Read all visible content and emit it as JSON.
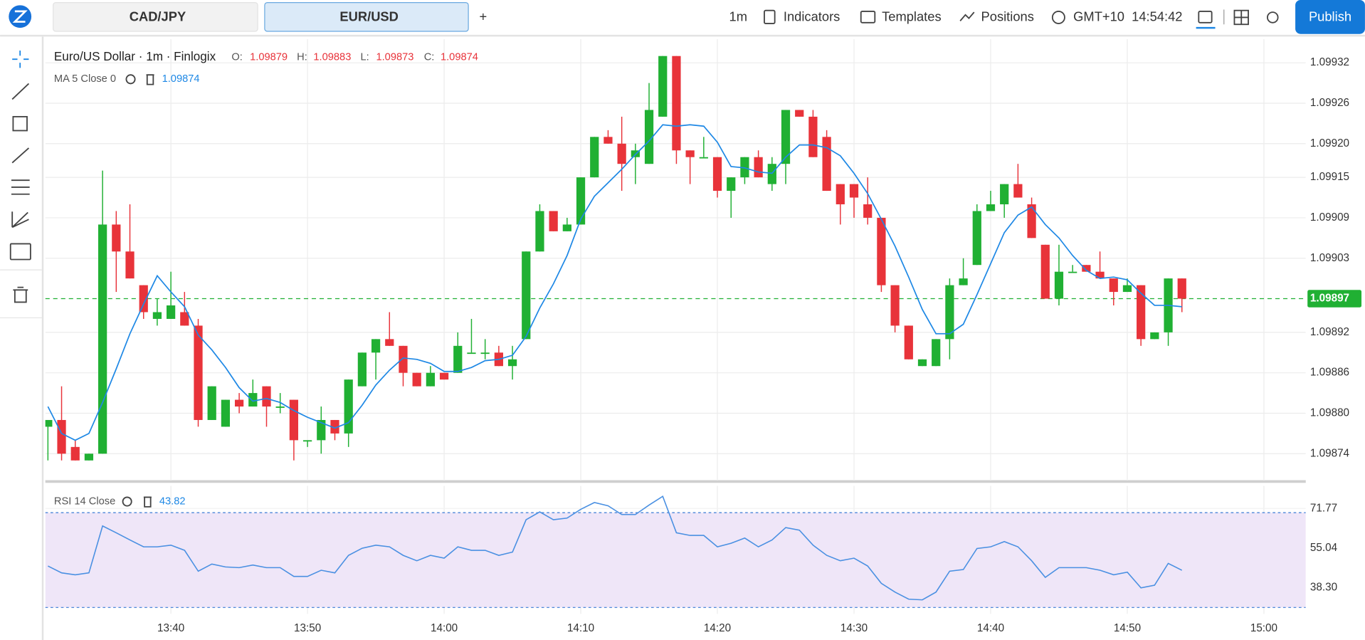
{
  "toolbar": {
    "tabs": [
      "CAD/JPY",
      "EUR/USD"
    ],
    "add": "+",
    "interval": "1m",
    "indicators": "Indicators",
    "templates": "Templates",
    "positions": "Positions",
    "timezone": "GMT+10",
    "clock": "14:54:42",
    "publish": "Publish"
  },
  "legend": {
    "symbol": "Euro/US Dollar · 1m · Finlogix",
    "o_label": "O:",
    "o": "1.09879",
    "h_label": "H:",
    "h": "1.09883",
    "l_label": "L:",
    "l": "1.09873",
    "c_label": "C:",
    "c": "1.09874",
    "ma_label": "MA 5 Close 0",
    "ma_value": "1.09874",
    "rsi_label": "RSI 14 Close",
    "rsi_value": "43.82"
  },
  "chart_data": [
    {
      "type": "candlestick",
      "x": [
        "13:31",
        "13:32",
        "13:33",
        "13:34",
        "13:35",
        "13:36",
        "13:37",
        "13:38",
        "13:39",
        "13:40",
        "13:41",
        "13:42",
        "13:43",
        "13:44",
        "13:45",
        "13:46",
        "13:47",
        "13:48",
        "13:49",
        "13:50",
        "13:51",
        "13:52",
        "13:53",
        "13:54",
        "13:55",
        "13:56",
        "13:57",
        "13:58",
        "13:59",
        "14:00",
        "14:01",
        "14:02",
        "14:03",
        "14:04",
        "14:05",
        "14:06",
        "14:07",
        "14:08",
        "14:09",
        "14:10",
        "14:11",
        "14:12",
        "14:13",
        "14:14",
        "14:15",
        "14:16",
        "14:17",
        "14:18",
        "14:19",
        "14:20",
        "14:21",
        "14:22",
        "14:23",
        "14:24",
        "14:25",
        "14:26",
        "14:27",
        "14:28",
        "14:29",
        "14:30",
        "14:31",
        "14:32",
        "14:33",
        "14:34",
        "14:35",
        "14:36",
        "14:37",
        "14:38",
        "14:39",
        "14:40",
        "14:41",
        "14:42",
        "14:43",
        "14:44",
        "14:45",
        "14:46",
        "14:47",
        "14:48",
        "14:49",
        "14:50",
        "14:51",
        "14:52",
        "14:53",
        "14:54"
      ],
      "open": [
        1.09878,
        1.09879,
        1.09875,
        1.09873,
        1.09874,
        1.09908,
        1.09904,
        1.09899,
        1.09894,
        1.09894,
        1.09895,
        1.09893,
        1.09879,
        1.09878,
        1.09882,
        1.09881,
        1.09884,
        1.09881,
        1.09882,
        1.09876,
        1.09876,
        1.09879,
        1.09877,
        1.09884,
        1.09889,
        1.09891,
        1.0989,
        1.09886,
        1.09884,
        1.09886,
        1.09886,
        1.09889,
        1.09889,
        1.09889,
        1.09887,
        1.09891,
        1.09904,
        1.0991,
        1.09907,
        1.09908,
        1.09915,
        1.09921,
        1.0992,
        1.09918,
        1.09917,
        1.09924,
        1.09933,
        1.09919,
        1.09918,
        1.09918,
        1.09913,
        1.09915,
        1.09918,
        1.09914,
        1.09917,
        1.09925,
        1.09924,
        1.09921,
        1.09914,
        1.09914,
        1.09911,
        1.09909,
        1.09899,
        1.09893,
        1.09887,
        1.09887,
        1.09891,
        1.09899,
        1.09902,
        1.0991,
        1.09911,
        1.09914,
        1.09911,
        1.09905,
        1.09897,
        1.09901,
        1.09902,
        1.09901,
        1.099,
        1.09898,
        1.09899,
        1.09891,
        1.09892,
        1.099
      ],
      "high": [
        1.09879,
        1.09884,
        1.09876,
        1.09874,
        1.09916,
        1.0991,
        1.09911,
        1.09899,
        1.09897,
        1.09901,
        1.09898,
        1.09894,
        1.09884,
        1.09882,
        1.09883,
        1.09885,
        1.09884,
        1.09883,
        1.09882,
        1.09876,
        1.09881,
        1.09879,
        1.09885,
        1.09889,
        1.09891,
        1.09895,
        1.0989,
        1.09886,
        1.09887,
        1.09886,
        1.09892,
        1.09894,
        1.09891,
        1.0989,
        1.0989,
        1.09904,
        1.09911,
        1.0991,
        1.09909,
        1.09915,
        1.09921,
        1.09922,
        1.09924,
        1.0992,
        1.09929,
        1.09933,
        1.09933,
        1.09919,
        1.09921,
        1.09918,
        1.09915,
        1.09918,
        1.09919,
        1.09918,
        1.09925,
        1.09925,
        1.09925,
        1.09922,
        1.09914,
        1.09914,
        1.09915,
        1.09909,
        1.09899,
        1.09893,
        1.09888,
        1.09891,
        1.099,
        1.09903,
        1.09911,
        1.09913,
        1.09914,
        1.09917,
        1.09912,
        1.09905,
        1.09905,
        1.09902,
        1.09902,
        1.09904,
        1.099,
        1.099,
        1.09899,
        1.09892,
        1.099,
        1.099
      ],
      "low": [
        1.09873,
        1.09873,
        1.09873,
        1.09873,
        1.09874,
        1.09898,
        1.099,
        1.09894,
        1.09893,
        1.09894,
        1.09893,
        1.09878,
        1.09879,
        1.09878,
        1.0988,
        1.09881,
        1.09878,
        1.0988,
        1.09873,
        1.09875,
        1.09874,
        1.09876,
        1.09875,
        1.09884,
        1.09885,
        1.0989,
        1.09884,
        1.09884,
        1.09884,
        1.09885,
        1.09886,
        1.09889,
        1.09888,
        1.09887,
        1.09885,
        1.09891,
        1.09904,
        1.09907,
        1.09907,
        1.09908,
        1.09915,
        1.0992,
        1.09913,
        1.09914,
        1.09917,
        1.09924,
        1.09917,
        1.09914,
        1.09918,
        1.09912,
        1.09909,
        1.09914,
        1.09915,
        1.09913,
        1.09914,
        1.09924,
        1.09918,
        1.09913,
        1.09908,
        1.09909,
        1.09908,
        1.09898,
        1.09892,
        1.09888,
        1.09887,
        1.09887,
        1.09888,
        1.09899,
        1.09902,
        1.0991,
        1.09909,
        1.09912,
        1.09906,
        1.09897,
        1.09896,
        1.09901,
        1.09901,
        1.099,
        1.09896,
        1.09898,
        1.0989,
        1.09891,
        1.0989,
        1.09895
      ],
      "close": [
        1.09879,
        1.09874,
        1.09873,
        1.09874,
        1.09908,
        1.09904,
        1.099,
        1.09895,
        1.09895,
        1.09896,
        1.09893,
        1.09879,
        1.09884,
        1.09882,
        1.09881,
        1.09883,
        1.09881,
        1.09881,
        1.09876,
        1.09876,
        1.09879,
        1.09877,
        1.09885,
        1.09889,
        1.09891,
        1.0989,
        1.09886,
        1.09884,
        1.09886,
        1.09885,
        1.0989,
        1.09889,
        1.09889,
        1.09887,
        1.09888,
        1.09904,
        1.0991,
        1.09907,
        1.09908,
        1.09915,
        1.09921,
        1.0992,
        1.09917,
        1.09919,
        1.09925,
        1.09933,
        1.09919,
        1.09918,
        1.09918,
        1.09913,
        1.09915,
        1.09918,
        1.09915,
        1.09917,
        1.09925,
        1.09924,
        1.09918,
        1.09913,
        1.09911,
        1.09912,
        1.09909,
        1.09899,
        1.09893,
        1.09888,
        1.09888,
        1.09891,
        1.09899,
        1.099,
        1.0991,
        1.09911,
        1.09914,
        1.09912,
        1.09906,
        1.09897,
        1.09901,
        1.09901,
        1.09901,
        1.099,
        1.09898,
        1.09899,
        1.09891,
        1.09892,
        1.099,
        1.09897
      ],
      "up_color": "#20b033",
      "down_color": "#e8333a",
      "ma": {
        "color": "#1e88e5",
        "values": [
          1.09881,
          1.09877,
          1.09876,
          1.09877,
          1.098816,
          1.098866,
          1.098918,
          1.098962,
          1.099004,
          1.09898,
          1.098958,
          1.098916,
          1.098894,
          1.098868,
          1.098838,
          1.098818,
          1.098822,
          1.098816,
          1.098804,
          1.098794,
          1.098786,
          1.098778,
          1.098786,
          1.098812,
          1.098842,
          1.098864,
          1.098882,
          1.09888,
          1.098874,
          1.098862,
          1.098862,
          1.098868,
          1.098878,
          1.09888,
          1.098886,
          1.098914,
          1.098956,
          1.098992,
          1.099034,
          1.099088,
          1.099122,
          1.099142,
          1.099162,
          1.099184,
          1.099204,
          1.099228,
          1.099226,
          1.099228,
          1.099226,
          1.099202,
          1.099166,
          1.099164,
          1.099158,
          1.099156,
          1.09918,
          1.099198,
          1.099198,
          1.099194,
          1.099182,
          1.099156,
          1.099126,
          1.099088,
          1.099048,
          1.099002,
          1.098954,
          1.098918,
          1.098918,
          1.098932,
          1.098976,
          1.099022,
          1.099068,
          1.099094,
          1.099106,
          1.09908,
          1.09906,
          1.099034,
          1.099012,
          1.099,
          1.099002,
          1.098998,
          1.098978,
          1.09896,
          1.09896,
          1.098958
        ]
      },
      "last": {
        "value": 1.09897,
        "color": "#20b033"
      },
      "ylim": [
        1.0987,
        1.099355
      ],
      "yticks": [
        1.09932,
        1.09926,
        {
          "value": 1.0992,
          "label": "1.09920"
        },
        1.09915,
        1.09909,
        1.09903,
        1.09892,
        1.09886,
        {
          "value": 1.0988,
          "label": "1.09880"
        },
        1.09874
      ],
      "xlim": [
        "13:31",
        "15:03"
      ],
      "xticks": [
        "13:40",
        "13:50",
        "14:00",
        "14:10",
        "14:20",
        "14:30",
        "14:40",
        "14:50",
        "15:00"
      ],
      "grid": true
    },
    {
      "type": "line",
      "color": "#4a90e2",
      "values": [
        47.5,
        44.6,
        43.8,
        44.6,
        64.4,
        61.5,
        58.5,
        55.6,
        55.6,
        56.3,
        54.1,
        45.3,
        48.3,
        47.1,
        46.8,
        47.9,
        46.8,
        46.8,
        43.1,
        43.1,
        45.7,
        44.6,
        52.0,
        55.0,
        56.3,
        55.6,
        52.0,
        49.7,
        52.0,
        50.8,
        55.6,
        54.1,
        54.1,
        52.0,
        53.4,
        67.0,
        70.3,
        67.0,
        67.7,
        71.4,
        74.3,
        72.9,
        69.2,
        69.2,
        73.2,
        76.9,
        61.5,
        60.4,
        60.4,
        55.6,
        57.1,
        59.3,
        55.6,
        58.5,
        63.7,
        62.6,
        56.3,
        52.0,
        49.7,
        50.8,
        47.5,
        40.2,
        36.5,
        33.5,
        33.2,
        36.5,
        45.3,
        46.0,
        54.9,
        55.6,
        57.8,
        55.6,
        49.7,
        42.7,
        46.8,
        46.8,
        46.8,
        45.7,
        43.8,
        44.9,
        38.3,
        39.4,
        48.6,
        45.7
      ],
      "band": [
        30,
        70
      ],
      "band_color": "#efe6f8",
      "band_line_color": "#3a7bd5",
      "ylim": [
        27.3,
        81.3
      ],
      "yticks": [
        71.77,
        55.04,
        {
          "value": 38.3,
          "label": "38.30"
        }
      ],
      "grid": true
    }
  ]
}
